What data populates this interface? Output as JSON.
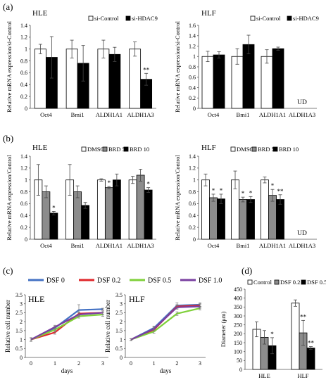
{
  "panels": [
    {
      "label": "(a)"
    },
    {
      "label": "(b)"
    },
    {
      "label": "(c)"
    },
    {
      "label": "(d)"
    }
  ],
  "colors": {
    "white": "#ffffff",
    "gray": "#8c8c8c",
    "black": "#000000",
    "dsf0": "#4472c4",
    "dsf02": "#e0262a",
    "dsf05": "#7fd03a",
    "dsf10": "#7a3fa0"
  },
  "chart_data": [
    {
      "id": "a-hle",
      "type": "bar",
      "title": "HLE",
      "ylabel": "Relative mRNA expression/si-Control",
      "ylim": [
        0,
        1.4
      ],
      "yticks": [
        0,
        0.2,
        0.4,
        0.6,
        0.8,
        1,
        1.2,
        1.4
      ],
      "categories": [
        "Oct4",
        "Bmi1",
        "ALDH1A1",
        "ALDH1A3"
      ],
      "series": [
        {
          "name": "si-Control",
          "fill": "white",
          "values": [
            1.0,
            1.0,
            1.0,
            1.0
          ],
          "errors": [
            0.08,
            0.15,
            0.15,
            0.12
          ],
          "sig": [
            "",
            "",
            "",
            ""
          ]
        },
        {
          "name": "si-HDAC9",
          "fill": "black",
          "values": [
            0.86,
            0.76,
            0.91,
            0.49
          ],
          "errors": [
            0.35,
            0.3,
            0.12,
            0.1
          ],
          "sig": [
            "",
            "",
            "",
            "**"
          ]
        }
      ],
      "legend": "top-right"
    },
    {
      "id": "a-hlf",
      "type": "bar",
      "title": "HLF",
      "ylabel": "Relative mRNA expression/si-Control",
      "ylim": [
        0,
        1.6
      ],
      "yticks": [
        0,
        0.2,
        0.4,
        0.6,
        0.8,
        1,
        1.2,
        1.4,
        1.6
      ],
      "categories": [
        "Oct4",
        "Bmi1",
        "ALDH1A1",
        "ALDH1A3"
      ],
      "series": [
        {
          "name": "si-Control",
          "fill": "white",
          "values": [
            1.0,
            1.0,
            1.0,
            null
          ],
          "errors": [
            0.1,
            0.15,
            0.13,
            null
          ],
          "sig": [
            "",
            "",
            "",
            ""
          ]
        },
        {
          "name": "si-HDAC9",
          "fill": "black",
          "values": [
            1.03,
            1.23,
            1.15,
            null
          ],
          "errors": [
            0.06,
            0.18,
            0.03,
            null
          ],
          "sig": [
            "",
            "",
            "",
            ""
          ]
        }
      ],
      "annotations": [
        {
          "category": "ALDH1A3",
          "text": "UD"
        }
      ],
      "legend": "top-right"
    },
    {
      "id": "b-hle",
      "type": "bar",
      "title": "HLE",
      "ylabel": "Relative mRNA expression/Control",
      "ylim": [
        0,
        1.4
      ],
      "yticks": [
        0,
        0.2,
        0.4,
        0.6,
        0.8,
        1,
        1.2,
        1.4
      ],
      "categories": [
        "Oct4",
        "Bmi1",
        "ALDH1A1",
        "ALDH1A3"
      ],
      "series": [
        {
          "name": "DMSO",
          "fill": "white",
          "values": [
            1.0,
            1.0,
            1.0,
            1.0
          ],
          "errors": [
            0.26,
            0.26,
            0.02,
            0.06
          ],
          "sig": [
            "",
            "",
            "",
            ""
          ]
        },
        {
          "name": "BRD 5",
          "fill": "gray",
          "values": [
            0.8,
            0.8,
            0.87,
            1.08
          ],
          "errors": [
            0.1,
            0.1,
            0.02,
            0.1
          ],
          "sig": [
            "",
            "",
            "*",
            ""
          ]
        },
        {
          "name": "BRD 10",
          "fill": "black",
          "values": [
            0.44,
            0.57,
            1.0,
            0.83
          ],
          "errors": [
            0.03,
            0.05,
            0.1,
            0.04
          ],
          "sig": [
            "*",
            "",
            "",
            "*"
          ]
        }
      ],
      "legend": "top-right"
    },
    {
      "id": "b-hlf",
      "type": "bar",
      "title": "HLF",
      "ylabel": "Relative mRNA expression/Control",
      "ylim": [
        0,
        1.4
      ],
      "yticks": [
        0,
        0.2,
        0.4,
        0.6,
        0.8,
        1,
        1.2,
        1.4
      ],
      "categories": [
        "Oct4",
        "Bmi1",
        "ALDH1A1",
        "ALDH1A3"
      ],
      "series": [
        {
          "name": "DMSO",
          "fill": "white",
          "values": [
            1.0,
            1.0,
            1.0,
            null
          ],
          "errors": [
            0.1,
            0.15,
            0.05,
            null
          ],
          "sig": [
            "",
            "",
            "",
            ""
          ]
        },
        {
          "name": "BRD 5",
          "fill": "gray",
          "values": [
            0.7,
            0.67,
            0.74,
            null
          ],
          "errors": [
            0.06,
            0.04,
            0.1,
            null
          ],
          "sig": [
            "*",
            "*",
            "*",
            ""
          ]
        },
        {
          "name": "BRD 10",
          "fill": "black",
          "values": [
            0.68,
            0.67,
            0.67,
            null
          ],
          "errors": [
            0.08,
            0.05,
            0.08,
            null
          ],
          "sig": [
            "*",
            "*",
            "**",
            ""
          ]
        }
      ],
      "annotations": [
        {
          "category": "ALDH1A3",
          "text": "UD"
        }
      ],
      "legend": "top-right"
    },
    {
      "id": "c-hle",
      "type": "line",
      "title": "HLE",
      "xlabel": "days",
      "ylabel": "Relative cell number",
      "xlim": [
        0,
        3
      ],
      "ylim": [
        0,
        3.5
      ],
      "xticks": [
        0,
        1,
        2,
        3
      ],
      "yticks": [
        0,
        0.5,
        1,
        1.5,
        2,
        2.5,
        3,
        3.5
      ],
      "x": [
        0,
        1,
        2,
        3
      ],
      "series": [
        {
          "name": "DSF 0",
          "color": "dsf0",
          "values": [
            1.0,
            1.65,
            2.65,
            2.7
          ],
          "errors": [
            0.1,
            0.1,
            0.3,
            0.05
          ]
        },
        {
          "name": "DSF 0.2",
          "color": "dsf02",
          "values": [
            1.0,
            1.4,
            2.45,
            2.5
          ],
          "errors": [
            0.1,
            0.1,
            0.1,
            0.1
          ]
        },
        {
          "name": "DSF 0.5",
          "color": "dsf05",
          "values": [
            1.0,
            1.55,
            2.3,
            2.4
          ],
          "errors": [
            0.1,
            0.1,
            0.1,
            0.1
          ]
        },
        {
          "name": "DSF 1.0",
          "color": "dsf10",
          "values": [
            1.0,
            1.7,
            2.4,
            2.5
          ],
          "errors": [
            0.1,
            0.1,
            0.1,
            0.1
          ]
        }
      ],
      "legend": "top"
    },
    {
      "id": "c-hlf",
      "type": "line",
      "title": "HLF",
      "xlabel": "days",
      "ylabel": "Relative cell number",
      "xlim": [
        0,
        3
      ],
      "ylim": [
        0,
        3.5
      ],
      "xticks": [
        0,
        1,
        2,
        3
      ],
      "yticks": [
        0,
        0.5,
        1,
        1.5,
        2,
        2.5,
        3,
        3.5
      ],
      "x": [
        0,
        1,
        2,
        3
      ],
      "series": [
        {
          "name": "DSF 0",
          "color": "dsf0",
          "values": [
            1.0,
            1.65,
            2.9,
            2.95
          ],
          "errors": [
            0.05,
            0.1,
            0.15,
            0.1
          ]
        },
        {
          "name": "DSF 0.2",
          "color": "dsf02",
          "values": [
            1.0,
            1.55,
            2.85,
            2.9
          ],
          "errors": [
            0.05,
            0.1,
            0.1,
            0.1
          ]
        },
        {
          "name": "DSF 0.5",
          "color": "dsf05",
          "values": [
            1.0,
            1.45,
            2.45,
            2.75
          ],
          "errors": [
            0.05,
            0.1,
            0.1,
            0.1
          ]
        },
        {
          "name": "DSF 1.0",
          "color": "dsf10",
          "values": [
            1.0,
            1.6,
            2.8,
            2.85
          ],
          "errors": [
            0.05,
            0.1,
            0.1,
            0.1
          ]
        }
      ],
      "legend": "top"
    },
    {
      "id": "d",
      "type": "bar",
      "title": "",
      "ylabel": "Diameter (μm)",
      "ylim": [
        0,
        450
      ],
      "yticks": [
        0,
        50,
        100,
        150,
        200,
        250,
        300,
        350,
        400,
        450
      ],
      "categories": [
        "HLE",
        "HLF"
      ],
      "series": [
        {
          "name": "Control",
          "fill": "white",
          "values": [
            225,
            372
          ],
          "errors": [
            42,
            18
          ],
          "sig": [
            "",
            ""
          ]
        },
        {
          "name": "DSF 0.2",
          "fill": "gray",
          "values": [
            180,
            205
          ],
          "errors": [
            38,
            70
          ],
          "sig": [
            "",
            "**"
          ]
        },
        {
          "name": "DSF 0.5",
          "fill": "black",
          "values": [
            133,
            120
          ],
          "errors": [
            45,
            8
          ],
          "sig": [
            "*",
            "**"
          ]
        }
      ],
      "legend": "top"
    }
  ]
}
